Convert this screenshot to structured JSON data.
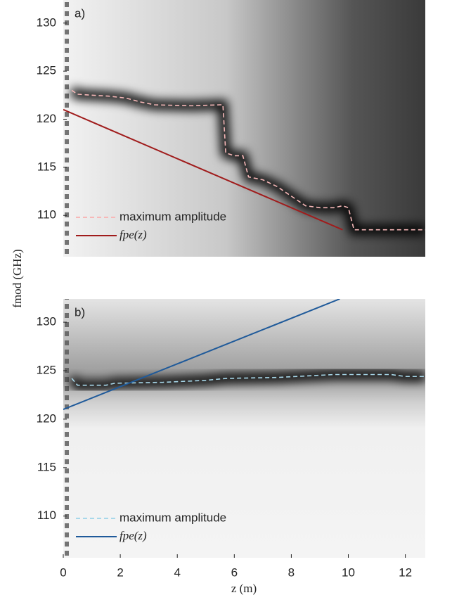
{
  "chart_data": [
    {
      "type": "line",
      "panel_label": "a)",
      "ylabel": "fmod (GHz)",
      "xlim": [
        0,
        12.7
      ],
      "ylim": [
        105.7,
        132.4
      ],
      "yticks": [
        110,
        115,
        120,
        125,
        130
      ],
      "legend": "lower left",
      "series": [
        {
          "name": "maximum amplitude",
          "color": "#f7b8b8",
          "dash": true,
          "x": [
            0.3,
            0.5,
            1,
            1.6,
            2.2,
            2.7,
            3.2,
            4.5,
            5.5,
            5.6,
            5.7,
            6,
            6.3,
            6.5,
            7,
            7.5,
            8,
            8.5,
            9,
            9.5,
            9.8,
            10,
            10.2,
            12.7
          ],
          "values": [
            123,
            122.6,
            122.5,
            122.4,
            122.2,
            121.8,
            121.5,
            121.4,
            121.5,
            121.5,
            116.5,
            116.2,
            116.2,
            114,
            113.7,
            113,
            112,
            111,
            110.8,
            110.8,
            111,
            110.8,
            108.5,
            108.5
          ]
        },
        {
          "name": "fpe(z)",
          "color": "#a01c1c",
          "dash": false,
          "x": [
            0,
            9.8
          ],
          "values": [
            121,
            108.5
          ]
        }
      ]
    },
    {
      "type": "line",
      "panel_label": "b)",
      "xlabel": "z (m)",
      "xlim": [
        0,
        12.7
      ],
      "ylim": [
        105.7,
        132.4
      ],
      "xticks": [
        0,
        2,
        4,
        6,
        8,
        10,
        12
      ],
      "yticks": [
        110,
        115,
        120,
        125,
        130
      ],
      "legend": "lower left",
      "series": [
        {
          "name": "maximum amplitude",
          "color": "#a8d8ea",
          "dash": true,
          "x": [
            0.3,
            0.5,
            1.5,
            1.8,
            3.5,
            5,
            5.7,
            7.5,
            9.5,
            11.5,
            12,
            12.7
          ],
          "values": [
            124.2,
            123.5,
            123.5,
            123.7,
            123.8,
            124,
            124.2,
            124.3,
            124.6,
            124.6,
            124.4,
            124.4
          ]
        },
        {
          "name": "fpe(z)",
          "color": "#1f5a9a",
          "dash": false,
          "x": [
            0,
            9.7
          ],
          "values": [
            121,
            132.4
          ]
        }
      ]
    }
  ]
}
